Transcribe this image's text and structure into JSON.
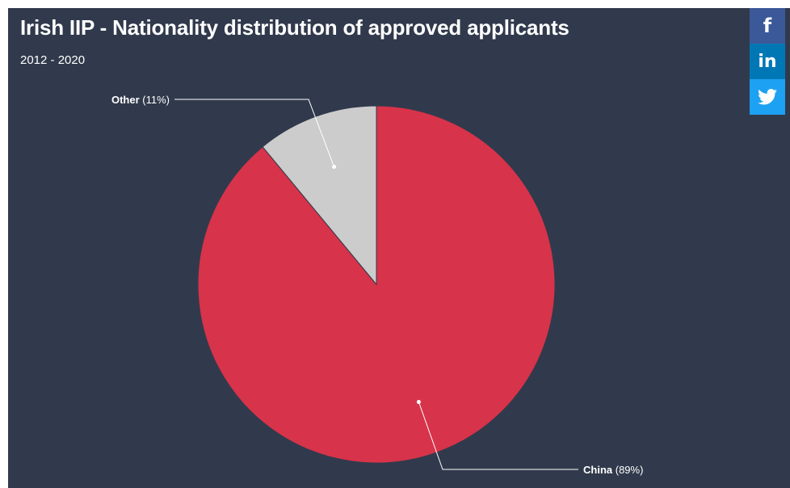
{
  "chart_data": {
    "type": "pie",
    "title": "Irish IIP - Nationality distribution of approved applicants",
    "subtitle": "2012 - 2020",
    "slices": [
      {
        "name": "China",
        "value": 89,
        "value_label": "(89%)",
        "color": "#d7334a"
      },
      {
        "name": "Other",
        "value": 11,
        "value_label": "(11%)",
        "color": "#cccccc"
      }
    ],
    "legend": "none"
  },
  "share": {
    "facebook": {
      "icon": "facebook-icon",
      "glyph": "f",
      "color": "#3b5998"
    },
    "linkedin": {
      "icon": "linkedin-icon",
      "glyph": "in",
      "color": "#0077b5"
    },
    "twitter": {
      "icon": "twitter-icon",
      "color": "#1da1f2"
    }
  },
  "theme": {
    "background": "#313a4c",
    "text": "#ffffff"
  }
}
